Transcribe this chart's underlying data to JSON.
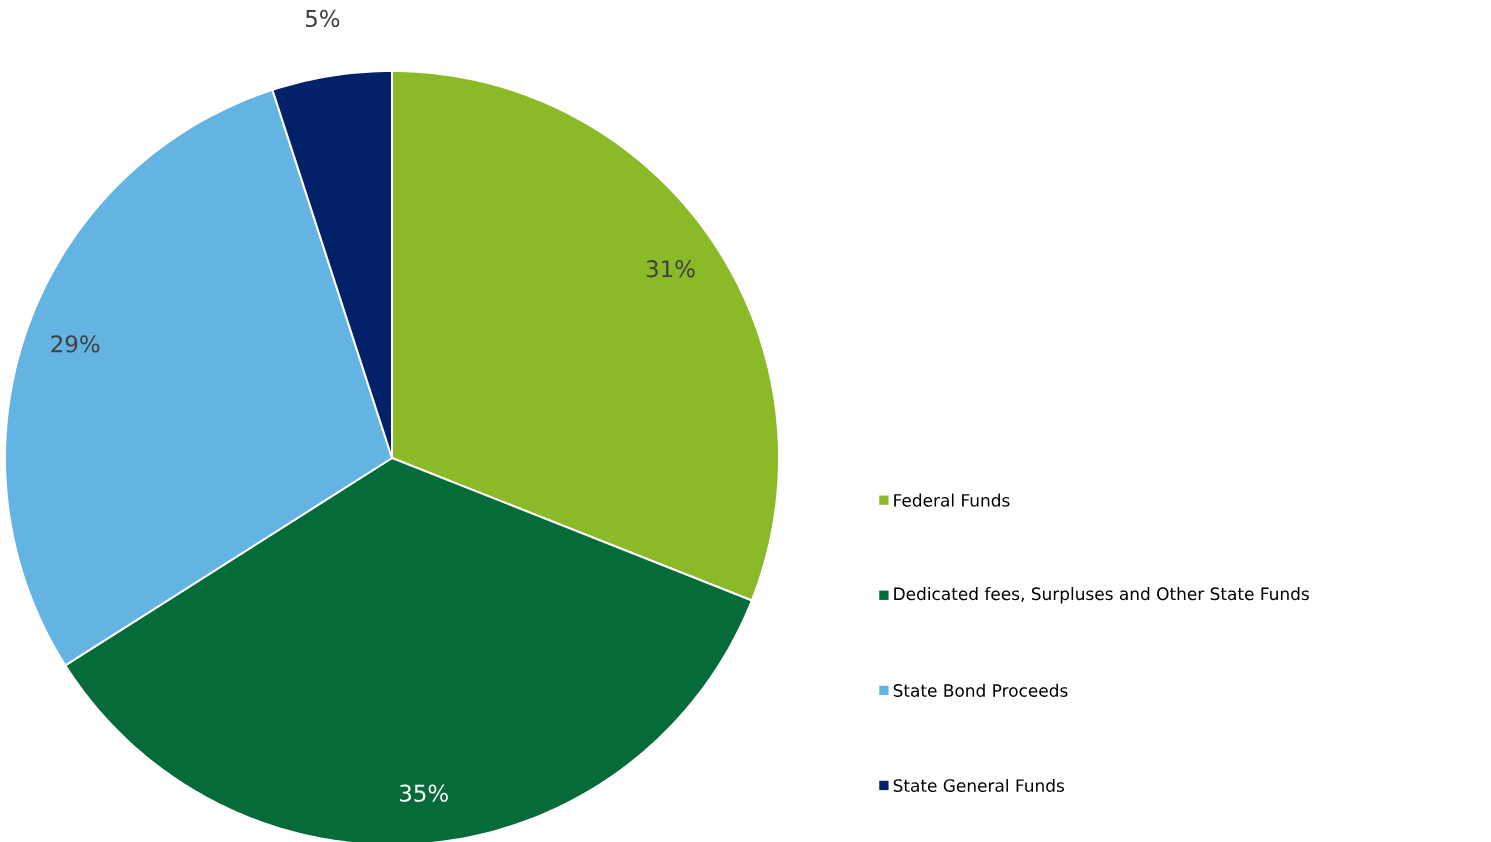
{
  "chart_data": {
    "type": "pie",
    "categories": [
      "Federal Funds",
      "Dedicated fees, Surpluses and Other State Funds",
      "State Bond Proceeds",
      "State General Funds"
    ],
    "values": [
      31,
      35,
      29,
      5
    ],
    "colors": [
      "#8aba27",
      "#056b39",
      "#63b3e3",
      "#022169"
    ],
    "value_labels": [
      "31%",
      "35%",
      "29%",
      "5%"
    ],
    "legend": "right"
  }
}
